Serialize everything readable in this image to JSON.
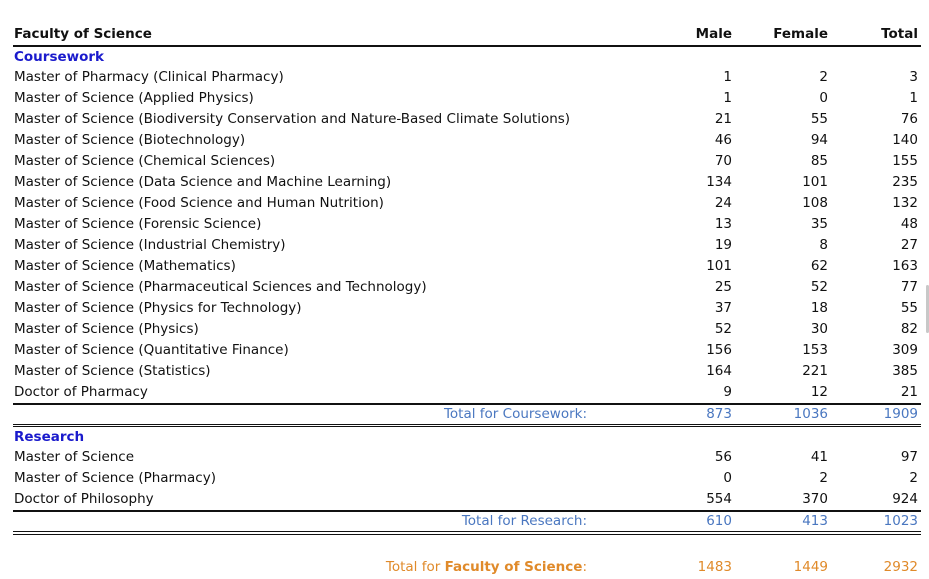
{
  "header": {
    "faculty": "Faculty of Science",
    "male": "Male",
    "female": "Female",
    "total": "Total"
  },
  "sections": [
    {
      "title": "Coursework",
      "rows": [
        {
          "name": "Master of Pharmacy (Clinical Pharmacy)",
          "male": "1",
          "female": "2",
          "total": "3"
        },
        {
          "name": "Master of Science (Applied Physics)",
          "male": "1",
          "female": "0",
          "total": "1"
        },
        {
          "name": "Master of Science (Biodiversity Conservation and Nature-Based Climate Solutions)",
          "male": "21",
          "female": "55",
          "total": "76"
        },
        {
          "name": "Master of Science (Biotechnology)",
          "male": "46",
          "female": "94",
          "total": "140"
        },
        {
          "name": "Master of Science (Chemical Sciences)",
          "male": "70",
          "female": "85",
          "total": "155"
        },
        {
          "name": "Master of Science (Data Science and Machine Learning)",
          "male": "134",
          "female": "101",
          "total": "235"
        },
        {
          "name": "Master of Science (Food Science and Human Nutrition)",
          "male": "24",
          "female": "108",
          "total": "132"
        },
        {
          "name": "Master of Science (Forensic Science)",
          "male": "13",
          "female": "35",
          "total": "48"
        },
        {
          "name": "Master of Science (Industrial Chemistry)",
          "male": "19",
          "female": "8",
          "total": "27"
        },
        {
          "name": "Master of Science (Mathematics)",
          "male": "101",
          "female": "62",
          "total": "163"
        },
        {
          "name": "Master of Science (Pharmaceutical Sciences and Technology)",
          "male": "25",
          "female": "52",
          "total": "77"
        },
        {
          "name": "Master of Science (Physics for Technology)",
          "male": "37",
          "female": "18",
          "total": "55"
        },
        {
          "name": "Master of Science (Physics)",
          "male": "52",
          "female": "30",
          "total": "82"
        },
        {
          "name": "Master of Science (Quantitative Finance)",
          "male": "156",
          "female": "153",
          "total": "309"
        },
        {
          "name": "Master of Science (Statistics)",
          "male": "164",
          "female": "221",
          "total": "385"
        },
        {
          "name": "Doctor of Pharmacy",
          "male": "9",
          "female": "12",
          "total": "21"
        }
      ],
      "subtotal": {
        "label": "Total for Coursework:",
        "male": "873",
        "female": "1036",
        "total": "1909"
      }
    },
    {
      "title": "Research",
      "rows": [
        {
          "name": "Master of Science",
          "male": "56",
          "female": "41",
          "total": "97"
        },
        {
          "name": "Master of Science (Pharmacy)",
          "male": "0",
          "female": "2",
          "total": "2"
        },
        {
          "name": "Doctor of Philosophy",
          "male": "554",
          "female": "370",
          "total": "924"
        }
      ],
      "subtotal": {
        "label": "Total for Research:",
        "male": "610",
        "female": "413",
        "total": "1023"
      }
    }
  ],
  "grand_total": {
    "prefix": "Total for ",
    "faculty": "Faculty of Science",
    "suffix": ":",
    "male": "1483",
    "female": "1449",
    "total": "2932"
  }
}
